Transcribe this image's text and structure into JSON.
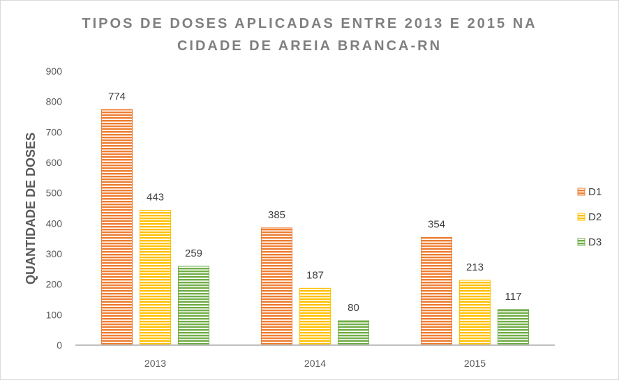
{
  "chart_data": {
    "type": "bar",
    "title_lines": [
      "TIPOS DE DOSES APLICADAS ENTRE 2013 E 2015 NA",
      "CIDADE DE  AREIA BRANCA-RN"
    ],
    "xlabel": "",
    "ylabel": "QUANTIDADE DE DOSES",
    "categories": [
      "2013",
      "2014",
      "2015"
    ],
    "ylim": [
      0,
      900
    ],
    "yticks": [
      "0",
      "100",
      "200",
      "300",
      "400",
      "500",
      "600",
      "700",
      "800",
      "900"
    ],
    "grid": false,
    "legend_position": "right",
    "series": [
      {
        "name": "D1",
        "color": "#ED7D31",
        "values": [
          774,
          385,
          354
        ]
      },
      {
        "name": "D2",
        "color": "#FFC000",
        "values": [
          443,
          187,
          213
        ]
      },
      {
        "name": "D3",
        "color": "#70AD47",
        "values": [
          259,
          80,
          117
        ]
      }
    ]
  }
}
